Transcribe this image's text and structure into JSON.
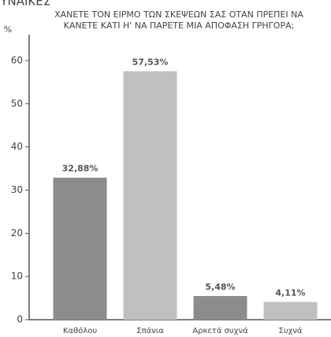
{
  "chart_data": {
    "type": "bar",
    "heading": "ΓΥΝΑΙΚΕΣ",
    "title": [
      "ΧΑΝΕΤΕ ΤΟΝ ΕΙΡΜΟ ΤΩΝ ΣΚΕΨΕΩΝ ΣΑΣ ΟΤΑΝ ΠΡΕΠΕΙ ΝΑ",
      "ΚΑΝΕΤΕ ΚΑΤΙ Η' ΝΑ ΠΑΡΕΤΕ ΜΙΑ ΑΠΟΦΑΣΗ ΓΡΗΓΟΡΑ;"
    ],
    "y_label": "%",
    "categories": [
      "Καθόλου",
      "Σπάνια",
      "Αρκετά συχνά",
      "Συχνά"
    ],
    "values": [
      32.88,
      57.53,
      5.48,
      4.11
    ],
    "value_labels": [
      "32,88%",
      "57,53%",
      "5,48%",
      "4,11%"
    ],
    "colors": [
      "#8c8c8c",
      "#c0c0c0",
      "#8c8c8c",
      "#c0c0c0"
    ],
    "ylim": [
      0,
      66
    ],
    "yticks": [
      0,
      10,
      20,
      30,
      40,
      50,
      60
    ],
    "grid": false
  }
}
